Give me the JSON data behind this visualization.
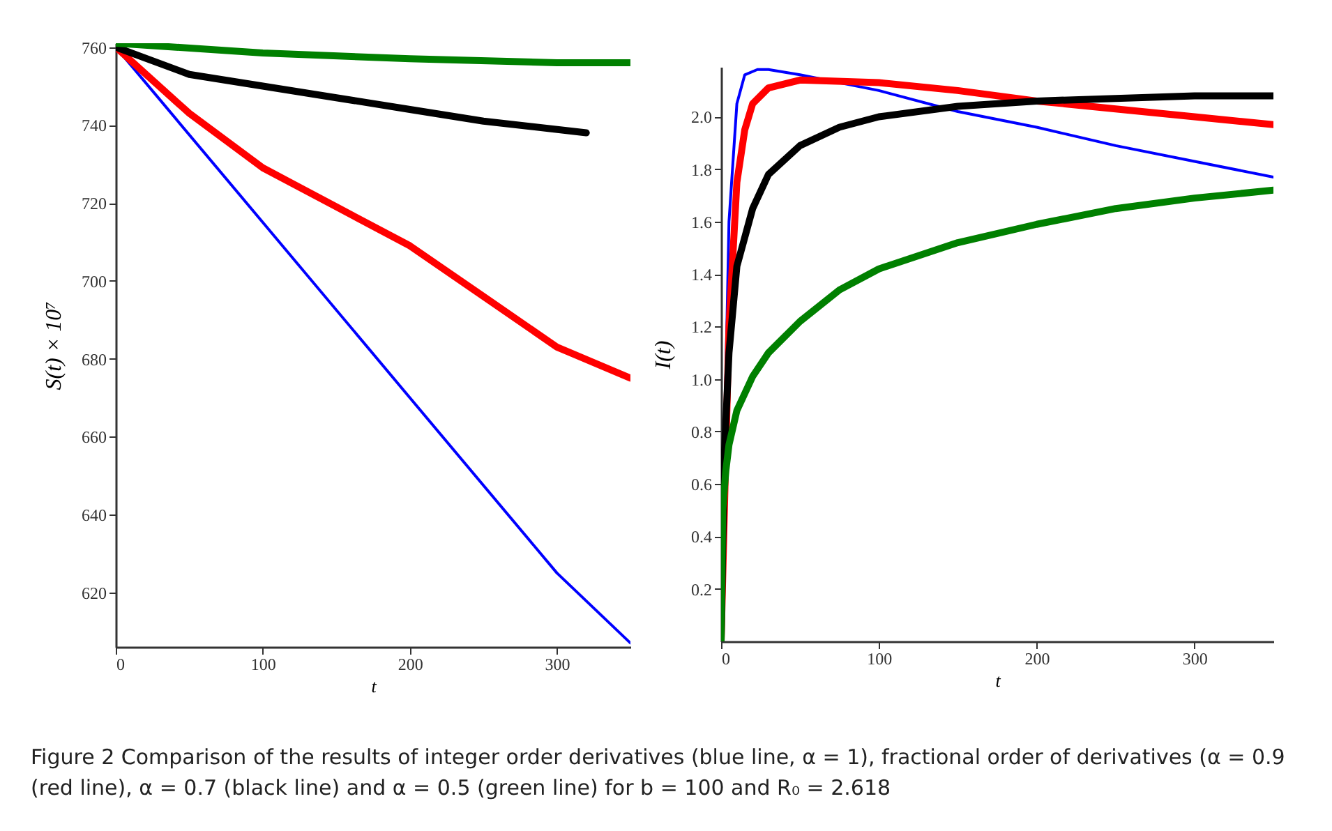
{
  "chart_data": [
    {
      "type": "line",
      "xlabel": "t",
      "ylabel": "S(t) × 10⁷",
      "xlim": [
        0,
        350
      ],
      "ylim": [
        606,
        761
      ],
      "xticks": [
        0,
        100,
        200,
        300
      ],
      "yticks": [
        620,
        640,
        660,
        680,
        700,
        720,
        740,
        760
      ],
      "series": [
        {
          "color": "#0000ff",
          "x": [
            0,
            100,
            200,
            300,
            350
          ],
          "values": [
            760,
            715,
            670,
            625,
            607
          ]
        },
        {
          "color": "#ff0000",
          "x": [
            0,
            50,
            100,
            150,
            200,
            250,
            300,
            350
          ],
          "values": [
            760,
            743,
            729,
            719,
            709,
            696,
            683,
            675
          ]
        },
        {
          "color": "#000000",
          "x": [
            0,
            50,
            100,
            150,
            200,
            250,
            320
          ],
          "values": [
            760,
            753,
            750,
            747,
            744,
            741,
            738
          ]
        },
        {
          "color": "#008000",
          "x": [
            0,
            100,
            200,
            300,
            350
          ],
          "values": [
            761,
            758.5,
            757,
            756,
            756
          ]
        }
      ],
      "annotations": [
        "Figure 2  Comparison of the results of integer order derivatives (blue line, α = 1), fractional order of derivatives (α = 0.9 (red line), α = 0.7 (black line) and α = 0.5 (green line) for b = 100 and R₀ = 2.618"
      ]
    },
    {
      "type": "line",
      "xlabel": "t",
      "ylabel": "I(t)",
      "xlim": [
        0,
        350
      ],
      "ylim": [
        0,
        2.19
      ],
      "xticks": [
        0,
        100,
        200,
        300
      ],
      "yticks": [
        {
          "value": 0.2,
          "label": "0.2"
        },
        {
          "value": 0.4,
          "label": "0.4"
        },
        {
          "value": 0.6,
          "label": "0.6"
        },
        {
          "value": 0.8,
          "label": "0.8"
        },
        {
          "value": 1,
          "label": "1.0"
        },
        {
          "value": 1.2,
          "label": "1.2"
        },
        {
          "value": 1.4,
          "label": "1.4"
        },
        {
          "value": 1.6,
          "label": "1.6"
        },
        {
          "value": 1.8,
          "label": "1.8"
        },
        {
          "value": 2,
          "label": "2.0"
        }
      ],
      "series": [
        {
          "color": "#0000ff",
          "x": [
            0,
            3,
            5,
            10,
            15,
            23,
            30,
            50,
            100,
            150,
            200,
            250,
            300,
            350
          ],
          "values": [
            0,
            1.0,
            1.6,
            2.05,
            2.16,
            2.18,
            2.18,
            2.16,
            2.1,
            2.02,
            1.96,
            1.89,
            1.83,
            1.77
          ]
        },
        {
          "color": "#ff0000",
          "x": [
            0,
            5,
            10,
            15,
            20,
            30,
            50,
            100,
            150,
            200,
            250,
            300,
            350
          ],
          "values": [
            0,
            1.2,
            1.75,
            1.95,
            2.05,
            2.11,
            2.14,
            2.13,
            2.1,
            2.06,
            2.03,
            2.0,
            1.97
          ]
        },
        {
          "color": "#000000",
          "x": [
            0,
            2,
            5,
            10,
            20,
            30,
            50,
            75,
            100,
            150,
            200,
            250,
            300,
            350
          ],
          "values": [
            0,
            0.7,
            1.1,
            1.43,
            1.65,
            1.78,
            1.89,
            1.96,
            2.0,
            2.04,
            2.06,
            2.07,
            2.08,
            2.08
          ]
        },
        {
          "color": "#008000",
          "x": [
            0,
            1,
            3,
            5,
            10,
            20,
            30,
            50,
            75,
            100,
            150,
            200,
            250,
            300,
            350
          ],
          "values": [
            0,
            0.5,
            0.65,
            0.75,
            0.88,
            1.01,
            1.1,
            1.22,
            1.34,
            1.42,
            1.52,
            1.59,
            1.65,
            1.69,
            1.72
          ]
        }
      ]
    }
  ]
}
